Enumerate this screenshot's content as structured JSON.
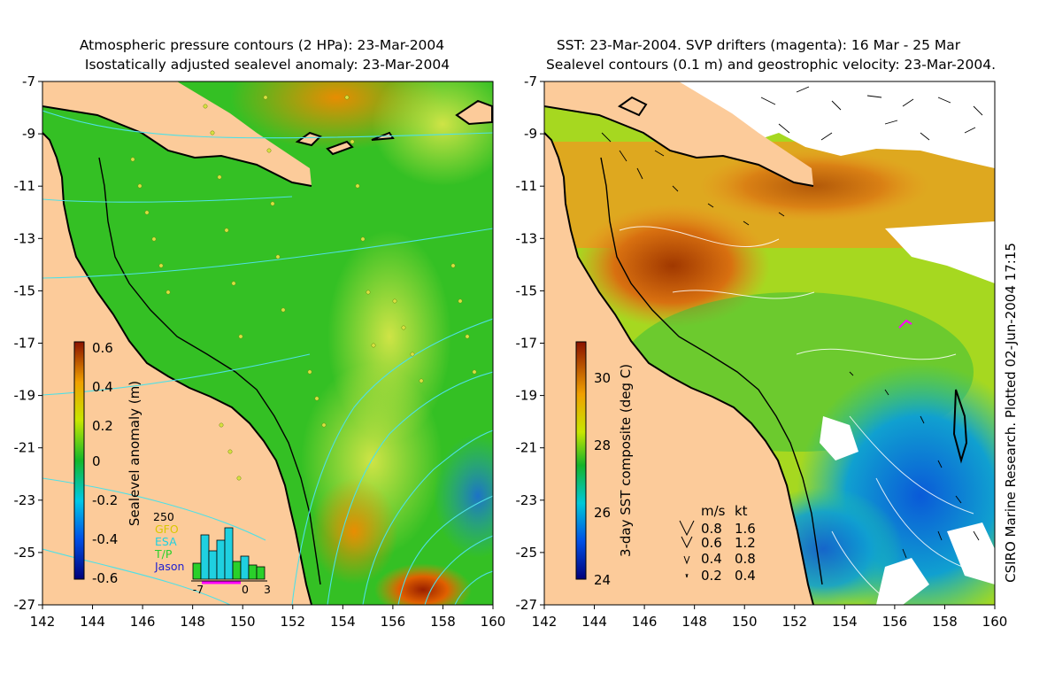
{
  "titles": {
    "left_line1": "Atmospheric pressure contours (2 HPa): 23-Mar-2004",
    "left_line2": "Isostatically adjusted sealevel anomaly: 23-Mar-2004",
    "right_line1": "SST: 23-Mar-2004. SVP drifters (magenta): 16 Mar - 25 Mar",
    "right_line2": "Sealevel contours (0.1 m) and geostrophic velocity: 23-Mar-2004."
  },
  "axes": {
    "lon_ticks": [
      "142",
      "144",
      "146",
      "148",
      "150",
      "152",
      "154",
      "156",
      "158",
      "160"
    ],
    "lat_ticks": [
      "-7",
      "-9",
      "-11",
      "-13",
      "-15",
      "-17",
      "-19",
      "-21",
      "-23",
      "-25",
      "-27"
    ],
    "lon_range": [
      142,
      160
    ],
    "lat_range": [
      -27,
      -7
    ]
  },
  "sealevel_colorbar": {
    "label": "Sealevel anomaly (m)",
    "ticks": [
      "0.6",
      "0.4",
      "0.2",
      "0",
      "-0.2",
      "-0.4",
      "-0.6"
    ],
    "range": [
      -0.6,
      0.6
    ]
  },
  "altimeter_histogram": {
    "ymax_label": "250",
    "missions": [
      {
        "name": "GFO",
        "color": "#d8c800"
      },
      {
        "name": "ESA",
        "color": "#1fd0e0"
      },
      {
        "name": "T/P",
        "color": "#2ad02a"
      },
      {
        "name": "Jason",
        "color": "#2020d0"
      }
    ],
    "x_ticks": [
      "-7",
      "0",
      "3"
    ]
  },
  "sst_colorbar": {
    "label": "3-day SST composite (deg C)",
    "ticks": [
      "30",
      "28",
      "26",
      "24"
    ],
    "range": [
      24,
      31
    ]
  },
  "velocity_legend": {
    "header_ms": "m/s",
    "header_kt": "kt",
    "rows": [
      {
        "ms": "0.8",
        "kt": "1.6"
      },
      {
        "ms": "0.6",
        "kt": "1.2"
      },
      {
        "ms": "0.4",
        "kt": "0.8"
      },
      {
        "ms": "0.2",
        "kt": "0.4"
      }
    ]
  },
  "credit": "CSIRO Marine Research. Plotted 02-Jun-2004 17:15",
  "colors": {
    "land": "#fccb9a",
    "cloud": "#ffffff",
    "contour": "#4fe0e6",
    "drifter": "#ff00ff"
  }
}
